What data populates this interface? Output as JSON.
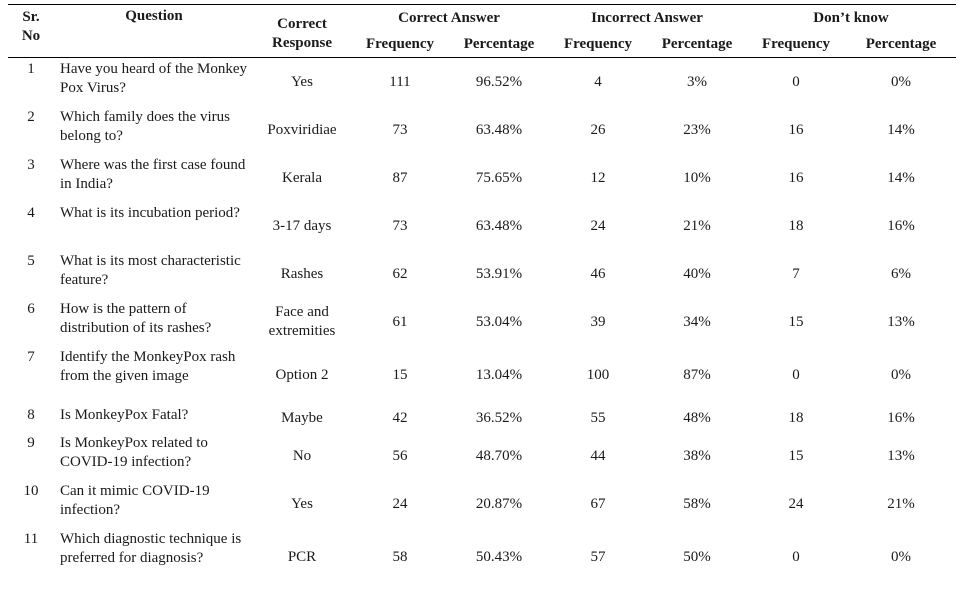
{
  "table": {
    "headers": {
      "sr_line1": "Sr.",
      "sr_line2": "No",
      "question": "Question",
      "correct_response_line1": "Correct",
      "correct_response_line2": "Response",
      "group_correct": "Correct Answer",
      "group_incorrect": "Incorrect Answer",
      "group_dont_know": "Don’t know",
      "frequency": "Frequency",
      "percentage": "Percentage"
    },
    "rows": [
      {
        "no": "1",
        "question": "Have you heard of the Monkey Pox Virus?",
        "response": "Yes",
        "c_freq": "111",
        "c_pct": "96.52%",
        "i_freq": "4",
        "i_pct": "3%",
        "d_freq": "0",
        "d_pct": "0%"
      },
      {
        "no": "2",
        "question": "Which family does the virus belong to?",
        "response": "Poxviridiae",
        "c_freq": "73",
        "c_pct": "63.48%",
        "i_freq": "26",
        "i_pct": "23%",
        "d_freq": "16",
        "d_pct": "14%"
      },
      {
        "no": "3",
        "question": "Where was the first case found in India?",
        "response": "Kerala",
        "c_freq": "87",
        "c_pct": "75.65%",
        "i_freq": "12",
        "i_pct": "10%",
        "d_freq": "16",
        "d_pct": "14%"
      },
      {
        "no": "4",
        "question": "What is its incubation period?",
        "response": "3-17 days",
        "c_freq": "73",
        "c_pct": "63.48%",
        "i_freq": "24",
        "i_pct": "21%",
        "d_freq": "18",
        "d_pct": "16%"
      },
      {
        "no": "5",
        "question": "What is its most characteristic feature?",
        "response": "Rashes",
        "c_freq": "62",
        "c_pct": "53.91%",
        "i_freq": "46",
        "i_pct": "40%",
        "d_freq": "7",
        "d_pct": "6%"
      },
      {
        "no": "6",
        "question": "How is the pattern of distribution of its rashes?",
        "response": "Face and extremities",
        "c_freq": "61",
        "c_pct": "53.04%",
        "i_freq": "39",
        "i_pct": "34%",
        "d_freq": "15",
        "d_pct": "13%"
      },
      {
        "no": "7",
        "question": "Identify the MonkeyPox rash from the given image",
        "response": "Option 2",
        "c_freq": "15",
        "c_pct": "13.04%",
        "i_freq": "100",
        "i_pct": "87%",
        "d_freq": "0",
        "d_pct": "0%"
      },
      {
        "no": "8",
        "question": "Is MonkeyPox Fatal?",
        "response": "Maybe",
        "c_freq": "42",
        "c_pct": "36.52%",
        "i_freq": "55",
        "i_pct": "48%",
        "d_freq": "18",
        "d_pct": "16%"
      },
      {
        "no": "9",
        "question": "Is MonkeyPox related to COVID-19 infection?",
        "response": "No",
        "c_freq": "56",
        "c_pct": "48.70%",
        "i_freq": "44",
        "i_pct": "38%",
        "d_freq": "15",
        "d_pct": "13%"
      },
      {
        "no": "10",
        "question": "Can it mimic COVID-19 infection?",
        "response": "Yes",
        "c_freq": "24",
        "c_pct": "20.87%",
        "i_freq": "67",
        "i_pct": "58%",
        "d_freq": "24",
        "d_pct": "21%"
      },
      {
        "no": "11",
        "question": "Which diagnostic technique is preferred for diagnosis?",
        "response": "PCR",
        "c_freq": "58",
        "c_pct": "50.43%",
        "i_freq": "57",
        "i_pct": "50%",
        "d_freq": "0",
        "d_pct": "0%"
      }
    ]
  }
}
